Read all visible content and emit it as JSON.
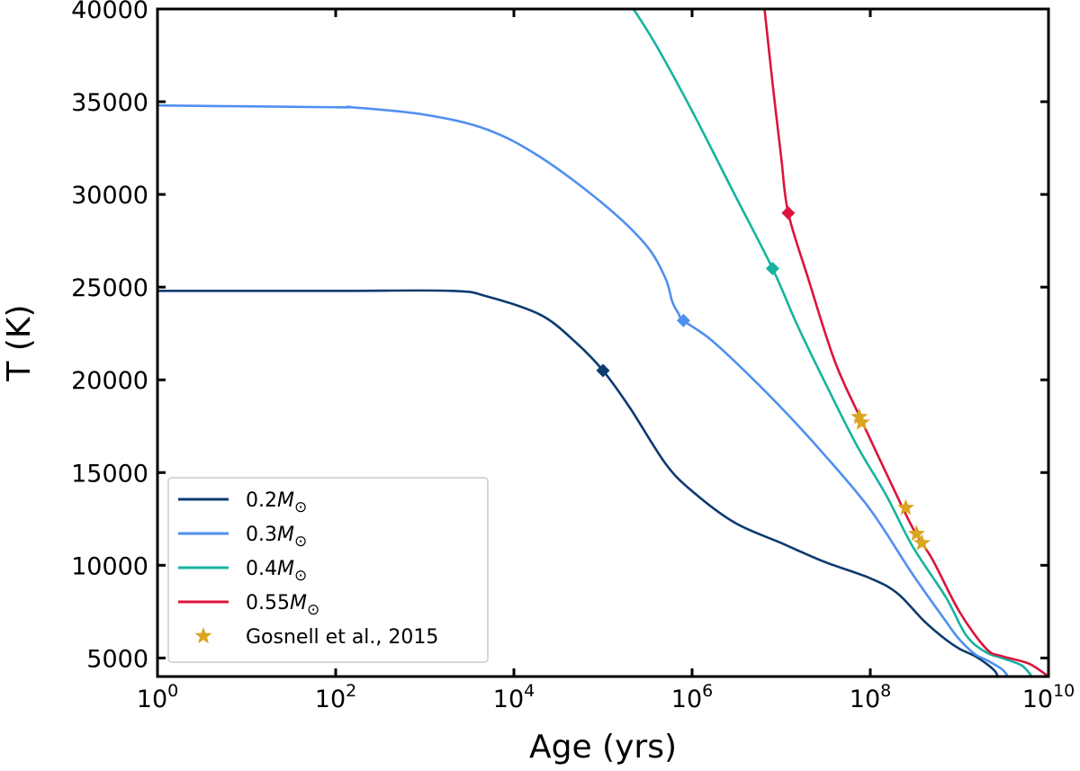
{
  "chart_data": {
    "type": "line",
    "title": "",
    "xlabel": "Age (yrs)",
    "ylabel": "T (K)",
    "xscale": "log",
    "xlim": [
      1,
      10000000000
    ],
    "ylim": [
      4000,
      40000
    ],
    "x_ticks": [
      {
        "value": 1,
        "base": "10",
        "exp": "0"
      },
      {
        "value": 100,
        "base": "10",
        "exp": "2"
      },
      {
        "value": 10000,
        "base": "10",
        "exp": "4"
      },
      {
        "value": 1000000,
        "base": "10",
        "exp": "6"
      },
      {
        "value": 100000000,
        "base": "10",
        "exp": "8"
      },
      {
        "value": 10000000000,
        "base": "10",
        "exp": "10"
      }
    ],
    "y_ticks": [
      5000,
      10000,
      15000,
      20000,
      25000,
      30000,
      35000,
      40000
    ],
    "y_tick_labels": [
      "5000",
      "10000",
      "15000",
      "20000",
      "25000",
      "30000",
      "35000",
      "40000"
    ],
    "grid": false,
    "legend_position": "bottom-left",
    "series": [
      {
        "name": "0.2M⊙",
        "mass": "0.2",
        "color": "#0d3b70",
        "points": [
          [
            1,
            24800
          ],
          [
            100,
            24800
          ],
          [
            2000,
            24800
          ],
          [
            5000,
            24500
          ],
          [
            20000,
            23500
          ],
          [
            50000,
            22000
          ],
          [
            100000,
            20500
          ],
          [
            200000,
            18500
          ],
          [
            500000,
            15500
          ],
          [
            1000000,
            14000
          ],
          [
            3000000,
            12300
          ],
          [
            10000000,
            11200
          ],
          [
            30000000,
            10200
          ],
          [
            100000000,
            9300
          ],
          [
            200000000,
            8500
          ],
          [
            400000000,
            7000
          ],
          [
            700000000,
            6000
          ],
          [
            1000000000,
            5500
          ],
          [
            1500000000,
            5100
          ],
          [
            2000000000,
            4700
          ],
          [
            2500000000,
            4300
          ],
          [
            2700000000,
            4000
          ]
        ],
        "marker": [
          100000,
          20500
        ]
      },
      {
        "name": "0.3M⊙",
        "mass": "0.3",
        "color": "#4f8ff0",
        "points": [
          [
            1,
            34800
          ],
          [
            100,
            34700
          ],
          [
            150,
            34700
          ],
          [
            1000,
            34300
          ],
          [
            5000,
            33500
          ],
          [
            20000,
            32000
          ],
          [
            100000,
            29500
          ],
          [
            300000,
            27300
          ],
          [
            500000,
            25500
          ],
          [
            600000,
            24200
          ],
          [
            700000,
            23600
          ],
          [
            800000,
            23200
          ],
          [
            1500000,
            22300
          ],
          [
            3000000,
            21000
          ],
          [
            10000000,
            18500
          ],
          [
            30000000,
            16000
          ],
          [
            100000000,
            13000
          ],
          [
            300000000,
            9500
          ],
          [
            700000000,
            7000
          ],
          [
            1000000000,
            6000
          ],
          [
            1500000000,
            5200
          ],
          [
            2000000000,
            4900
          ],
          [
            3000000000,
            4400
          ],
          [
            3500000000,
            4000
          ]
        ],
        "marker": [
          800000,
          23200
        ]
      },
      {
        "name": "0.4M⊙",
        "mass": "0.4",
        "color": "#17b3a0",
        "points": [
          [
            220000,
            40000
          ],
          [
            400000,
            38000
          ],
          [
            1000000,
            34500
          ],
          [
            3000000,
            30000
          ],
          [
            8000000,
            26000
          ],
          [
            15000000,
            23000
          ],
          [
            30000000,
            20000
          ],
          [
            70000000,
            16500
          ],
          [
            150000000,
            13800
          ],
          [
            300000000,
            11000
          ],
          [
            700000000,
            8300
          ],
          [
            1200000000,
            6200
          ],
          [
            2000000000,
            5300
          ],
          [
            3000000000,
            5000
          ],
          [
            5000000000,
            4600
          ],
          [
            6500000000,
            4000
          ]
        ],
        "marker": [
          8000000,
          26000
        ]
      },
      {
        "name": "0.55M⊙",
        "mass": "0.55",
        "color": "#dc143c",
        "points": [
          [
            6500000,
            40000
          ],
          [
            8000000,
            36000
          ],
          [
            10000000,
            32000
          ],
          [
            12000000,
            29000
          ],
          [
            20000000,
            25500
          ],
          [
            40000000,
            21000
          ],
          [
            80000000,
            17800
          ],
          [
            150000000,
            15000
          ],
          [
            300000000,
            12000
          ],
          [
            500000000,
            10300
          ],
          [
            1000000000,
            7500
          ],
          [
            2000000000,
            5500
          ],
          [
            3000000000,
            5100
          ],
          [
            6000000000,
            4700
          ],
          [
            10000000000,
            4000
          ]
        ],
        "marker": [
          12000000,
          29000
        ]
      }
    ],
    "observations": {
      "name": "Gosnell et al., 2015",
      "color": "#daa520",
      "points": [
        [
          75000000,
          18000
        ],
        [
          80000000,
          17700
        ],
        [
          250000000,
          13100
        ],
        [
          330000000,
          11700
        ],
        [
          380000000,
          11200
        ]
      ]
    }
  }
}
